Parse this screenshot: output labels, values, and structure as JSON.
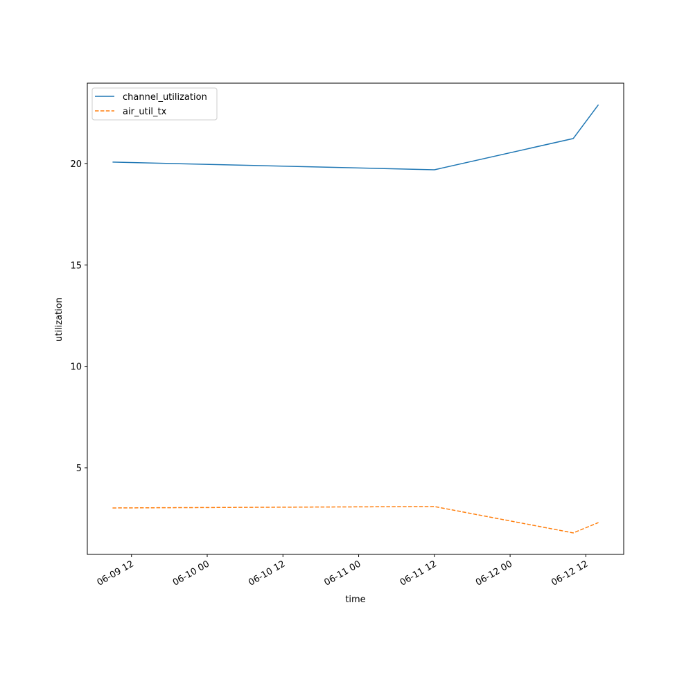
{
  "chart_data": {
    "type": "line",
    "x_label": "time",
    "y_label": "utilization",
    "x": [
      "06-09 09",
      "06-11 12",
      "06-12 10",
      "06-12 14"
    ],
    "series": [
      {
        "name": "channel_utilization",
        "color": "#1f77b4",
        "dash": "solid",
        "values": [
          20.07,
          19.69,
          21.23,
          22.9
        ]
      },
      {
        "name": "air_util_tx",
        "color": "#ff7f0e",
        "dash": "dashed",
        "values": [
          3.02,
          3.09,
          1.79,
          2.3
        ]
      }
    ],
    "xlim": [
      "06-09 05",
      "06-12 18"
    ],
    "xticks": [
      "06-09 12",
      "06-10 00",
      "06-10 12",
      "06-11 00",
      "06-11 12",
      "06-12 00",
      "06-12 12"
    ],
    "ylim": [
      0.73,
      23.96
    ],
    "yticks": [
      5,
      10,
      15,
      20
    ],
    "legend": "upper left"
  }
}
